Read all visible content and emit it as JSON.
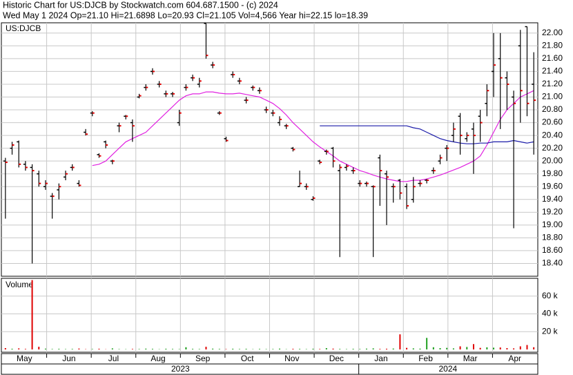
{
  "chart_data": {
    "type": "ohlc",
    "title": "Historic Chart for US:DJCB by Stockwatch.com 604.687.1500 - (c) 2024",
    "subtitle": "Wed May  1 2024  Op=21.10  Hi=21.6898  Lo=20.93  Cl=21.105  Vol=4,566  Year hi=22.15  lo=18.39",
    "symbol": "US:DJCB",
    "volume_label": "Volume",
    "months": [
      "May",
      "Jun",
      "Jul",
      "Aug",
      "Sep",
      "Oct",
      "Nov",
      "Dec",
      "Jan",
      "Feb",
      "Mar",
      "Apr"
    ],
    "years": [
      "2023",
      "2024"
    ],
    "grid": true,
    "ylim": [
      18.2,
      22.16
    ],
    "yticks": [
      {
        "value": 18.4,
        "label": "18.40"
      },
      {
        "value": 18.6,
        "label": "18.60"
      },
      {
        "value": 18.8,
        "label": "18.80"
      },
      {
        "value": 19,
        "label": "19.00"
      },
      {
        "value": 19.2,
        "label": "19.20"
      },
      {
        "value": 19.4,
        "label": "19.40"
      },
      {
        "value": 19.6,
        "label": "19.60"
      },
      {
        "value": 19.8,
        "label": "19.80"
      },
      {
        "value": 20,
        "label": "20.00"
      },
      {
        "value": 20.2,
        "label": "20.20"
      },
      {
        "value": 20.4,
        "label": "20.40"
      },
      {
        "value": 20.6,
        "label": "20.60"
      },
      {
        "value": 20.8,
        "label": "20.80"
      },
      {
        "value": 21,
        "label": "21.00"
      },
      {
        "value": 21.2,
        "label": "21.20"
      },
      {
        "value": 21.4,
        "label": "21.40"
      },
      {
        "value": 21.6,
        "label": "21.60"
      },
      {
        "value": 21.8,
        "label": "21.80"
      },
      {
        "value": 22,
        "label": "22.00"
      }
    ],
    "open": [
      20.0,
      20.2,
      20.3,
      19.95,
      19.9,
      19.8,
      19.6,
      19.45,
      19.55,
      19.75,
      19.9,
      19.65,
      20.45,
      20.75,
      20.1,
      20.3,
      20.0,
      20.55,
      20.7,
      20.6,
      21.0,
      21.15,
      21.4,
      21.2,
      21.05,
      21.05,
      20.6,
      21.15,
      21.3,
      21.2,
      22.15,
      21.5,
      20.75,
      20.35,
      21.35,
      21.25,
      20.95,
      21.15,
      21.1,
      20.8,
      20.75,
      20.6,
      20.55,
      20.2,
      19.6,
      19.6,
      19.4,
      20.0,
      20.15,
      20.2,
      19.85,
      19.9,
      19.85,
      19.65,
      19.65,
      19.6,
      20.05,
      19.8,
      19.6,
      19.7,
      19.6,
      19.4,
      19.65,
      19.7,
      19.85,
      20.0,
      20.2,
      20.4,
      20.7,
      20.35,
      20.5,
      20.7,
      20.9,
      21.4,
      21.6,
      21.3,
      21.0,
      21.8,
      22.1,
      21.2
    ],
    "high": [
      20.05,
      20.3,
      20.32,
      20.0,
      19.95,
      19.85,
      19.7,
      19.5,
      19.65,
      19.85,
      19.95,
      19.7,
      20.5,
      20.78,
      20.12,
      20.32,
      20.02,
      20.6,
      20.72,
      20.65,
      21.05,
      21.2,
      21.45,
      21.25,
      21.1,
      21.08,
      20.8,
      21.2,
      21.35,
      21.3,
      22.15,
      21.55,
      20.78,
      20.38,
      21.4,
      21.3,
      21.0,
      21.18,
      21.15,
      20.85,
      20.8,
      20.7,
      20.58,
      20.22,
      19.85,
      19.65,
      19.45,
      20.02,
      20.18,
      20.22,
      19.95,
      19.95,
      19.9,
      19.7,
      19.68,
      19.62,
      20.1,
      19.85,
      19.65,
      19.72,
      19.65,
      19.75,
      19.7,
      19.72,
      19.9,
      20.1,
      20.25,
      20.6,
      20.75,
      20.45,
      20.6,
      20.8,
      21.2,
      22.0,
      22.0,
      21.4,
      21.1,
      22.05,
      22.1,
      21.7
    ],
    "low": [
      19.1,
      20.1,
      19.9,
      19.85,
      18.4,
      19.6,
      19.55,
      19.1,
      19.4,
      19.7,
      19.85,
      19.6,
      20.4,
      20.7,
      20.05,
      20.2,
      19.95,
      20.45,
      20.65,
      20.3,
      20.98,
      21.1,
      21.35,
      21.15,
      21.0,
      21.0,
      20.55,
      21.1,
      21.25,
      21.15,
      21.6,
      21.45,
      20.72,
      20.3,
      21.3,
      21.2,
      20.9,
      21.1,
      21.05,
      20.75,
      20.7,
      20.55,
      20.5,
      20.15,
      19.6,
      19.55,
      19.38,
      19.95,
      20.1,
      19.9,
      18.5,
      19.85,
      19.8,
      19.6,
      19.6,
      18.5,
      19.3,
      19.0,
      19.35,
      19.4,
      19.25,
      19.35,
      19.6,
      19.65,
      19.8,
      19.95,
      20.0,
      20.3,
      20.1,
      20.3,
      19.8,
      20.3,
      20.7,
      21.0,
      20.5,
      20.8,
      18.95,
      20.6,
      20.7,
      20.1
    ],
    "close": [
      19.98,
      20.25,
      19.95,
      19.9,
      19.85,
      19.65,
      19.65,
      19.45,
      19.6,
      19.8,
      19.9,
      19.62,
      20.42,
      20.75,
      20.08,
      20.25,
      20.0,
      20.55,
      20.7,
      20.55,
      21.02,
      21.15,
      21.4,
      21.2,
      21.05,
      21.05,
      20.75,
      21.15,
      21.3,
      21.25,
      21.65,
      21.5,
      20.75,
      20.32,
      21.35,
      21.25,
      20.95,
      21.15,
      21.1,
      20.8,
      20.75,
      20.65,
      20.55,
      20.18,
      19.65,
      19.6,
      19.42,
      19.98,
      20.15,
      20.0,
      19.9,
      19.92,
      19.85,
      19.65,
      19.65,
      19.6,
      19.85,
      19.75,
      19.6,
      19.5,
      19.3,
      19.6,
      19.65,
      19.7,
      19.85,
      20.05,
      20.2,
      20.5,
      20.4,
      20.4,
      20.4,
      20.6,
      21.1,
      21.5,
      21.3,
      21.2,
      20.9,
      21.1,
      20.9,
      20.95
    ],
    "ma_series": [
      {
        "color": "#e020e0",
        "values": [
          null,
          null,
          null,
          null,
          null,
          null,
          null,
          null,
          null,
          null,
          null,
          null,
          null,
          19.93,
          19.95,
          20.0,
          20.1,
          20.2,
          20.3,
          20.35,
          20.4,
          20.45,
          20.55,
          20.65,
          20.75,
          20.85,
          20.95,
          21.02,
          21.05,
          21.05,
          21.08,
          21.08,
          21.06,
          21.05,
          21.05,
          21.06,
          21.04,
          21.02,
          21.0,
          20.95,
          20.9,
          20.82,
          20.72,
          20.6,
          20.5,
          20.4,
          20.3,
          20.22,
          20.15,
          20.08,
          20.0,
          19.95,
          19.9,
          19.85,
          19.82,
          19.78,
          19.75,
          19.72,
          19.7,
          19.68,
          19.68,
          19.7,
          19.7,
          19.72,
          19.75,
          19.78,
          19.82,
          19.86,
          19.9,
          19.95,
          20.0,
          20.08,
          20.25,
          20.45,
          20.65,
          20.8,
          20.9,
          21.0,
          21.05,
          21.1
        ]
      },
      {
        "color": "#1a1aa8",
        "values": [
          null,
          null,
          null,
          null,
          null,
          null,
          null,
          null,
          null,
          null,
          null,
          null,
          null,
          null,
          null,
          null,
          null,
          null,
          null,
          null,
          null,
          null,
          null,
          null,
          null,
          null,
          null,
          null,
          null,
          null,
          null,
          null,
          null,
          null,
          null,
          null,
          null,
          null,
          null,
          null,
          null,
          null,
          null,
          null,
          null,
          null,
          null,
          20.55,
          20.55,
          20.55,
          20.55,
          20.55,
          20.55,
          20.55,
          20.55,
          20.55,
          20.55,
          20.55,
          20.55,
          20.55,
          20.55,
          20.52,
          20.5,
          20.45,
          20.4,
          20.35,
          20.32,
          20.3,
          20.28,
          20.27,
          20.27,
          20.28,
          20.28,
          20.3,
          20.3,
          20.3,
          20.32,
          20.3,
          20.28,
          20.3
        ]
      }
    ],
    "volume": [
      1500,
      800,
      1200,
      600,
      78000,
      3000,
      900,
      500,
      700,
      400,
      600,
      1000,
      300,
      500,
      800,
      200,
      1200,
      400,
      300,
      600,
      500,
      900,
      700,
      300,
      800,
      600,
      400,
      2500,
      700,
      500,
      3000,
      900,
      600,
      400,
      800,
      500,
      700,
      300,
      600,
      400,
      500,
      900,
      300,
      700,
      600,
      400,
      800,
      500,
      1500,
      900,
      600,
      400,
      700,
      500,
      900,
      1200,
      600,
      800,
      1000,
      17000,
      1800,
      1200,
      900,
      13000,
      2500,
      1500,
      1800,
      1200,
      3500,
      2800,
      6000,
      1800,
      2400,
      2000,
      2200,
      1500,
      1200,
      3500,
      5000,
      2500
    ],
    "vlim": [
      0,
      80000
    ],
    "vticks": [
      {
        "value": 20000,
        "label": "20 k"
      },
      {
        "value": 40000,
        "label": "40 k"
      },
      {
        "value": 60000,
        "label": "60 k"
      }
    ]
  }
}
